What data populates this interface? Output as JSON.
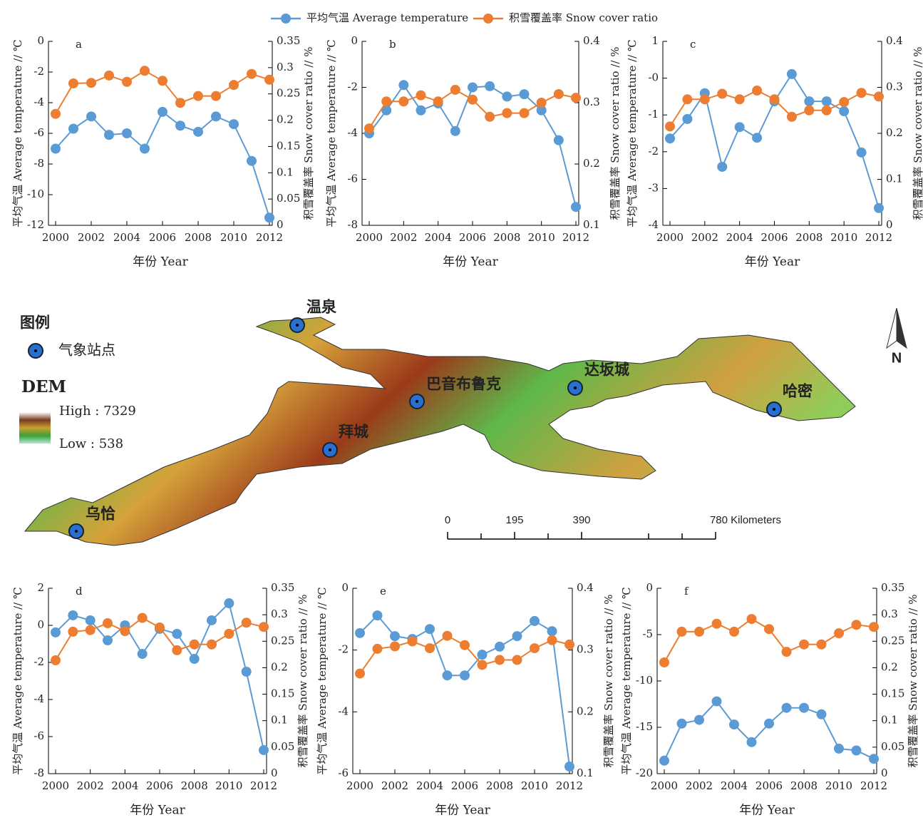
{
  "legend": {
    "items": [
      {
        "name": "平均气温 Average temperature",
        "color": "#5b9bd5"
      },
      {
        "name": "积雪覆盖率 Snow cover ratio",
        "color": "#ed7d31"
      }
    ]
  },
  "chart_data": [
    {
      "type": "line",
      "panel": "a",
      "x": [
        2000,
        2001,
        2002,
        2003,
        2004,
        2005,
        2006,
        2007,
        2008,
        2009,
        2010,
        2011,
        2012
      ],
      "xlim": [
        2000,
        2012
      ],
      "xticks": [
        2000,
        2002,
        2004,
        2006,
        2008,
        2010,
        2012
      ],
      "ylim": [
        -12,
        0
      ],
      "yticks": [
        0,
        -2,
        -4,
        -6,
        -8,
        -10,
        -12
      ],
      "y2lim": [
        0,
        0.35
      ],
      "y2ticks": [
        0,
        0.05,
        0.1,
        0.15,
        0.2,
        0.25,
        0.3,
        0.35
      ],
      "xlabel": "年份 Year",
      "ylabel": "平均气温 Average temperature // ℃",
      "y2label": "积雪覆盖率 Snow cover ratio // %",
      "series": [
        {
          "values": [
            -7.0,
            -5.7,
            -4.9,
            -6.1,
            -6.0,
            -7.0,
            -4.6,
            -5.5,
            -5.9,
            -4.9,
            -5.4,
            -7.8,
            -11.5
          ]
        },
        {
          "axis": "y2",
          "values": [
            0.212,
            0.27,
            0.271,
            0.285,
            0.273,
            0.294,
            0.275,
            0.233,
            0.246,
            0.246,
            0.267,
            0.288,
            0.277
          ]
        }
      ]
    },
    {
      "type": "line",
      "panel": "b",
      "x": [
        2000,
        2001,
        2002,
        2003,
        2004,
        2005,
        2006,
        2007,
        2008,
        2009,
        2010,
        2011,
        2012
      ],
      "xlim": [
        2000,
        2012
      ],
      "xticks": [
        2000,
        2002,
        2004,
        2006,
        2008,
        2010,
        2012
      ],
      "ylim": [
        -8,
        0
      ],
      "yticks": [
        0,
        -2,
        -4,
        -6,
        -8
      ],
      "y2lim": [
        0.1,
        0.4
      ],
      "y2ticks": [
        0.1,
        0.2,
        0.3,
        0.4
      ],
      "xlabel": "年份 Year",
      "ylabel": "平均气温 Average temperature // ℃",
      "y2label": "积雪覆盖率 Snow cover ratio // %",
      "series": [
        {
          "values": [
            -4.0,
            -3.0,
            -1.9,
            -3.0,
            -2.7,
            -3.9,
            -2.0,
            -1.95,
            -2.4,
            -2.3,
            -3.0,
            -4.3,
            -7.2
          ]
        },
        {
          "axis": "y2",
          "values": [
            0.258,
            0.302,
            0.302,
            0.312,
            0.302,
            0.321,
            0.305,
            0.277,
            0.283,
            0.283,
            0.3,
            0.314,
            0.308
          ]
        }
      ]
    },
    {
      "type": "line",
      "panel": "c",
      "x": [
        2000,
        2001,
        2002,
        2003,
        2004,
        2005,
        2006,
        2007,
        2008,
        2009,
        2010,
        2011,
        2012
      ],
      "xlim": [
        2000,
        2012
      ],
      "xticks": [
        2000,
        2002,
        2004,
        2006,
        2008,
        2010,
        2012
      ],
      "ylim": [
        -4,
        1
      ],
      "yticks": [
        1,
        {
          "value": 0,
          "label": "-0"
        },
        -1,
        -2,
        -3,
        -4
      ],
      "y2lim": [
        0,
        0.4
      ],
      "y2ticks": [
        0,
        0.1,
        0.2,
        0.3,
        0.4
      ],
      "xlabel": "年份 Year",
      "ylabel": "平均气温 Average temperature // ℃",
      "y2label": "积雪覆盖率 Snow cover ratio // %",
      "series": [
        {
          "values": [
            -1.64,
            -1.11,
            -0.41,
            -2.41,
            -1.33,
            -1.62,
            -0.63,
            0.11,
            -0.63,
            -0.63,
            -0.9,
            -2.02,
            -3.53
          ]
        },
        {
          "axis": "y2",
          "values": [
            0.215,
            0.274,
            0.274,
            0.286,
            0.274,
            0.293,
            0.274,
            0.236,
            0.25,
            0.25,
            0.268,
            0.288,
            0.28
          ]
        }
      ]
    },
    {
      "type": "line",
      "panel": "d",
      "x": [
        2000,
        2001,
        2002,
        2003,
        2004,
        2005,
        2006,
        2007,
        2008,
        2009,
        2010,
        2011,
        2012
      ],
      "xlim": [
        2000,
        2012
      ],
      "xticks": [
        2000,
        2002,
        2004,
        2006,
        2008,
        2010,
        2012
      ],
      "ylim": [
        -8,
        2
      ],
      "yticks": [
        2,
        0,
        -2,
        -4,
        -6,
        -8
      ],
      "y2lim": [
        0,
        0.35
      ],
      "y2ticks": [
        0,
        0.05,
        0.1,
        0.15,
        0.2,
        0.25,
        0.3,
        0.35
      ],
      "xlabel": "年份 Year",
      "ylabel": "平均气温 Average temperature // ℃",
      "y2label": "积雪覆盖率 Snow cover ratio // %",
      "series": [
        {
          "values": [
            -0.38,
            0.54,
            0.27,
            -0.81,
            0.0,
            -1.54,
            -0.19,
            -0.46,
            -1.81,
            0.27,
            1.19,
            -2.5,
            -6.73
          ]
        },
        {
          "axis": "y2",
          "values": [
            0.214,
            0.268,
            0.271,
            0.284,
            0.269,
            0.294,
            0.276,
            0.233,
            0.244,
            0.244,
            0.264,
            0.285,
            0.277
          ]
        }
      ]
    },
    {
      "type": "line",
      "panel": "e",
      "x": [
        2000,
        2001,
        2002,
        2003,
        2004,
        2005,
        2006,
        2007,
        2008,
        2009,
        2010,
        2011,
        2012
      ],
      "xlim": [
        2000,
        2012
      ],
      "xticks": [
        2000,
        2002,
        2004,
        2006,
        2008,
        2010,
        2012
      ],
      "ylim": [
        -6,
        0
      ],
      "yticks": [
        0,
        -2,
        -4,
        -6
      ],
      "y2lim": [
        0.1,
        0.4
      ],
      "y2ticks": [
        0.1,
        0.2,
        0.3,
        0.4
      ],
      "xlabel": "年份 Year",
      "ylabel": "平均气温 Average temperature // ℃",
      "y2label": "积雪覆盖率 Snow cover ratio // %",
      "series": [
        {
          "values": [
            -1.45,
            -0.88,
            -1.55,
            -1.64,
            -1.32,
            -2.82,
            -2.82,
            -2.15,
            -1.89,
            -1.55,
            -1.06,
            -1.39,
            -5.77
          ]
        },
        {
          "axis": "y2",
          "values": [
            0.262,
            0.302,
            0.306,
            0.314,
            0.303,
            0.323,
            0.308,
            0.276,
            0.284,
            0.284,
            0.303,
            0.316,
            0.309
          ]
        }
      ]
    },
    {
      "type": "line",
      "panel": "f",
      "x": [
        2000,
        2001,
        2002,
        2003,
        2004,
        2005,
        2006,
        2007,
        2008,
        2009,
        2010,
        2011,
        2012
      ],
      "xlim": [
        2000,
        2012
      ],
      "xticks": [
        2000,
        2002,
        2004,
        2006,
        2008,
        2010,
        2012
      ],
      "ylim": [
        -20,
        0
      ],
      "yticks": [
        0,
        -5,
        -10,
        -15,
        -20
      ],
      "y2lim": [
        0,
        0.35
      ],
      "y2ticks": [
        0,
        0.05,
        0.1,
        0.15,
        0.2,
        0.25,
        0.3,
        0.35
      ],
      "xlabel": "年份 Year",
      "ylabel": "平均气温 Average temperature // ℃",
      "y2label": "积雪覆盖率 Snow cover ratio // %",
      "series": [
        {
          "values": [
            -18.6,
            -14.6,
            -14.2,
            -12.2,
            -14.7,
            -16.6,
            -14.6,
            -12.9,
            -12.9,
            -13.6,
            -17.3,
            -17.5,
            -18.4
          ]
        },
        {
          "axis": "y2",
          "values": [
            0.21,
            0.268,
            0.268,
            0.283,
            0.268,
            0.292,
            0.273,
            0.23,
            0.244,
            0.244,
            0.265,
            0.281,
            0.277
          ]
        }
      ]
    }
  ],
  "map": {
    "legend_title": "图例",
    "station_label": "气象站点",
    "dem_title": "DEM",
    "dem_high": "High : 7329",
    "dem_low": "Low : 538",
    "stations": [
      "温泉",
      "巴音布鲁克",
      "达坂城",
      "哈密",
      "拜城",
      "乌恰"
    ],
    "scale_labels": [
      "0",
      "195",
      "390",
      "780 Kilometers"
    ],
    "north": "N"
  }
}
